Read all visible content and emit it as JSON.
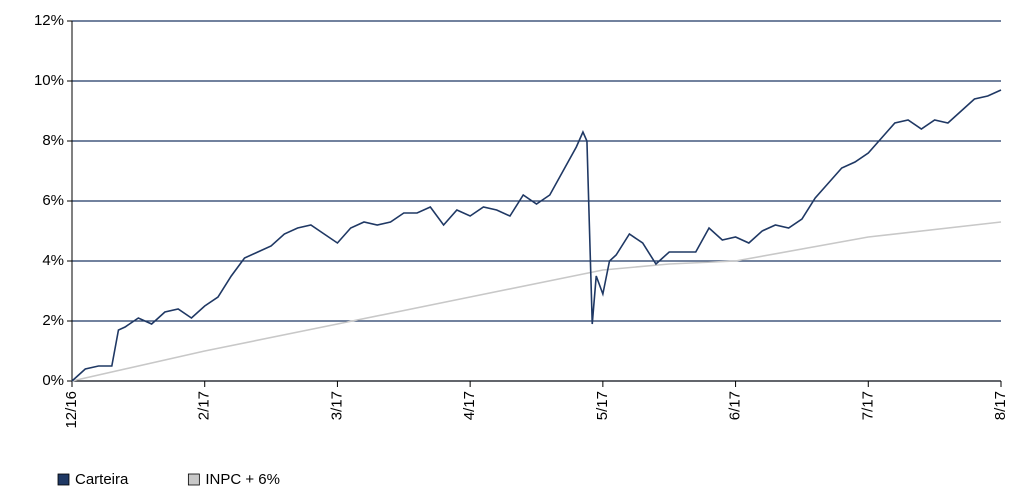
{
  "chart_data": {
    "type": "line",
    "xlim": [
      0,
      7
    ],
    "xticks": [
      {
        "value": 0,
        "label": "12/16"
      },
      {
        "value": 1,
        "label": "2/17"
      },
      {
        "value": 2,
        "label": "3/17"
      },
      {
        "value": 3,
        "label": "4/17"
      },
      {
        "value": 4,
        "label": "5/17"
      },
      {
        "value": 5,
        "label": "6/17"
      },
      {
        "value": 6,
        "label": "7/17"
      },
      {
        "value": 7,
        "label": "8/17"
      }
    ],
    "ylim": [
      0,
      12
    ],
    "yticks": [
      {
        "value": 0,
        "label": "0%"
      },
      {
        "value": 2,
        "label": "2%"
      },
      {
        "value": 4,
        "label": "4%"
      },
      {
        "value": 6,
        "label": "6%"
      },
      {
        "value": 8,
        "label": "8%"
      },
      {
        "value": 10,
        "label": "10%"
      },
      {
        "value": 12,
        "label": "12%"
      }
    ],
    "grid": true,
    "series": [
      {
        "name": "Carteira",
        "color": "#1f3864",
        "x": [
          0,
          0.1,
          0.2,
          0.3,
          0.35,
          0.4,
          0.5,
          0.6,
          0.7,
          0.8,
          0.9,
          1.0,
          1.1,
          1.2,
          1.3,
          1.4,
          1.5,
          1.6,
          1.7,
          1.8,
          1.9,
          2.0,
          2.1,
          2.2,
          2.3,
          2.4,
          2.5,
          2.6,
          2.7,
          2.8,
          2.9,
          3.0,
          3.1,
          3.2,
          3.3,
          3.4,
          3.5,
          3.6,
          3.7,
          3.8,
          3.85,
          3.88,
          3.92,
          3.95,
          4.0,
          4.05,
          4.1,
          4.2,
          4.3,
          4.4,
          4.5,
          4.6,
          4.7,
          4.8,
          4.9,
          5.0,
          5.1,
          5.2,
          5.3,
          5.4,
          5.5,
          5.6,
          5.7,
          5.8,
          5.9,
          6.0,
          6.1,
          6.2,
          6.3,
          6.4,
          6.5,
          6.6,
          6.7,
          6.8,
          6.9,
          7.0
        ],
        "values": [
          0,
          0.4,
          0.5,
          0.5,
          1.7,
          1.8,
          2.1,
          1.9,
          2.3,
          2.4,
          2.1,
          2.5,
          2.8,
          3.5,
          4.1,
          4.3,
          4.5,
          4.9,
          5.1,
          5.2,
          4.9,
          4.6,
          5.1,
          5.3,
          5.2,
          5.3,
          5.6,
          5.6,
          5.8,
          5.2,
          5.7,
          5.5,
          5.8,
          5.7,
          5.5,
          6.2,
          5.9,
          6.2,
          7.0,
          7.8,
          8.3,
          8.0,
          1.9,
          3.5,
          2.9,
          4.0,
          4.2,
          4.9,
          4.6,
          3.9,
          4.3,
          4.3,
          4.3,
          5.1,
          4.7,
          4.8,
          4.6,
          5.0,
          5.2,
          5.1,
          5.4,
          6.1,
          6.6,
          7.1,
          7.3,
          7.6,
          8.1,
          8.6,
          8.7,
          8.4,
          8.7,
          8.6,
          9.0,
          9.4,
          9.5,
          9.7
        ]
      },
      {
        "name": "INPC + 6%",
        "color": "#c8c8c8",
        "x": [
          0,
          1,
          2,
          3,
          4,
          4.5,
          5,
          6,
          7
        ],
        "values": [
          0,
          1.0,
          1.9,
          2.8,
          3.7,
          3.9,
          4.0,
          4.8,
          5.3
        ]
      }
    ]
  }
}
